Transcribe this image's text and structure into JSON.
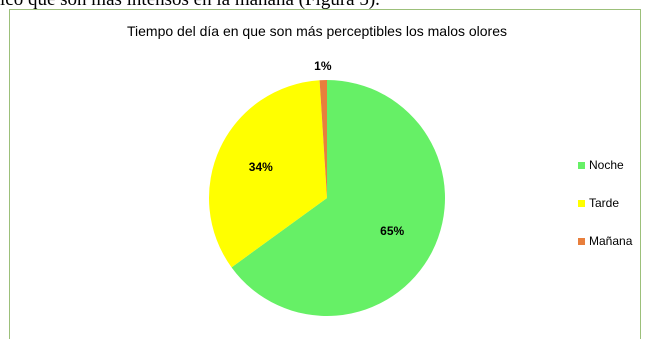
{
  "document": {
    "top_text": "ico que son más intensos en la mañana (Figura 5)."
  },
  "chart_data": {
    "type": "pie",
    "title": "Tiempo del día en que son más perceptibles los malos olores",
    "categories": [
      "Noche",
      "Tarde",
      "Mañana"
    ],
    "values": [
      65,
      34,
      1
    ],
    "labels": [
      "65%",
      "34%",
      "1%"
    ],
    "colors": [
      "#66f066",
      "#ffff00",
      "#e87f3c"
    ],
    "legend_position": "right"
  }
}
